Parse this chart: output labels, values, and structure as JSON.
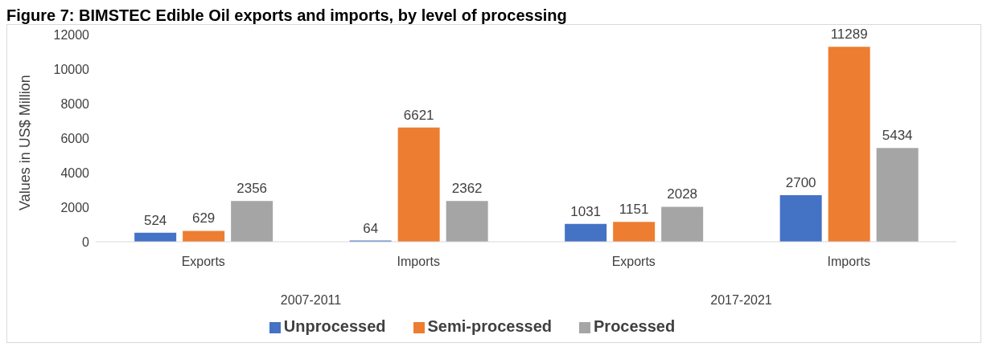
{
  "chart_data": {
    "type": "bar",
    "title": "Figure 7: BIMSTEC Edible Oil exports and imports, by level of processing",
    "ylabel": "Values in US$ Million",
    "categories": [
      "Exports",
      "Imports",
      "Exports",
      "Imports"
    ],
    "annotations": [
      "2007-2011",
      "2017-2021"
    ],
    "series": [
      {
        "name": "Unprocessed",
        "color": "#4472c4",
        "values": [
          524,
          64,
          1031,
          2700
        ]
      },
      {
        "name": "Semi-processed",
        "color": "#ed7d31",
        "values": [
          629,
          6621,
          1151,
          11289
        ]
      },
      {
        "name": "Processed",
        "color": "#a5a5a5",
        "values": [
          2356,
          2362,
          2028,
          5434
        ]
      }
    ],
    "ylim": [
      0,
      12000
    ],
    "yticks": [
      0,
      2000,
      4000,
      6000,
      8000,
      10000,
      12000
    ],
    "data_labels": true,
    "legend": "bottom",
    "grid": false
  }
}
